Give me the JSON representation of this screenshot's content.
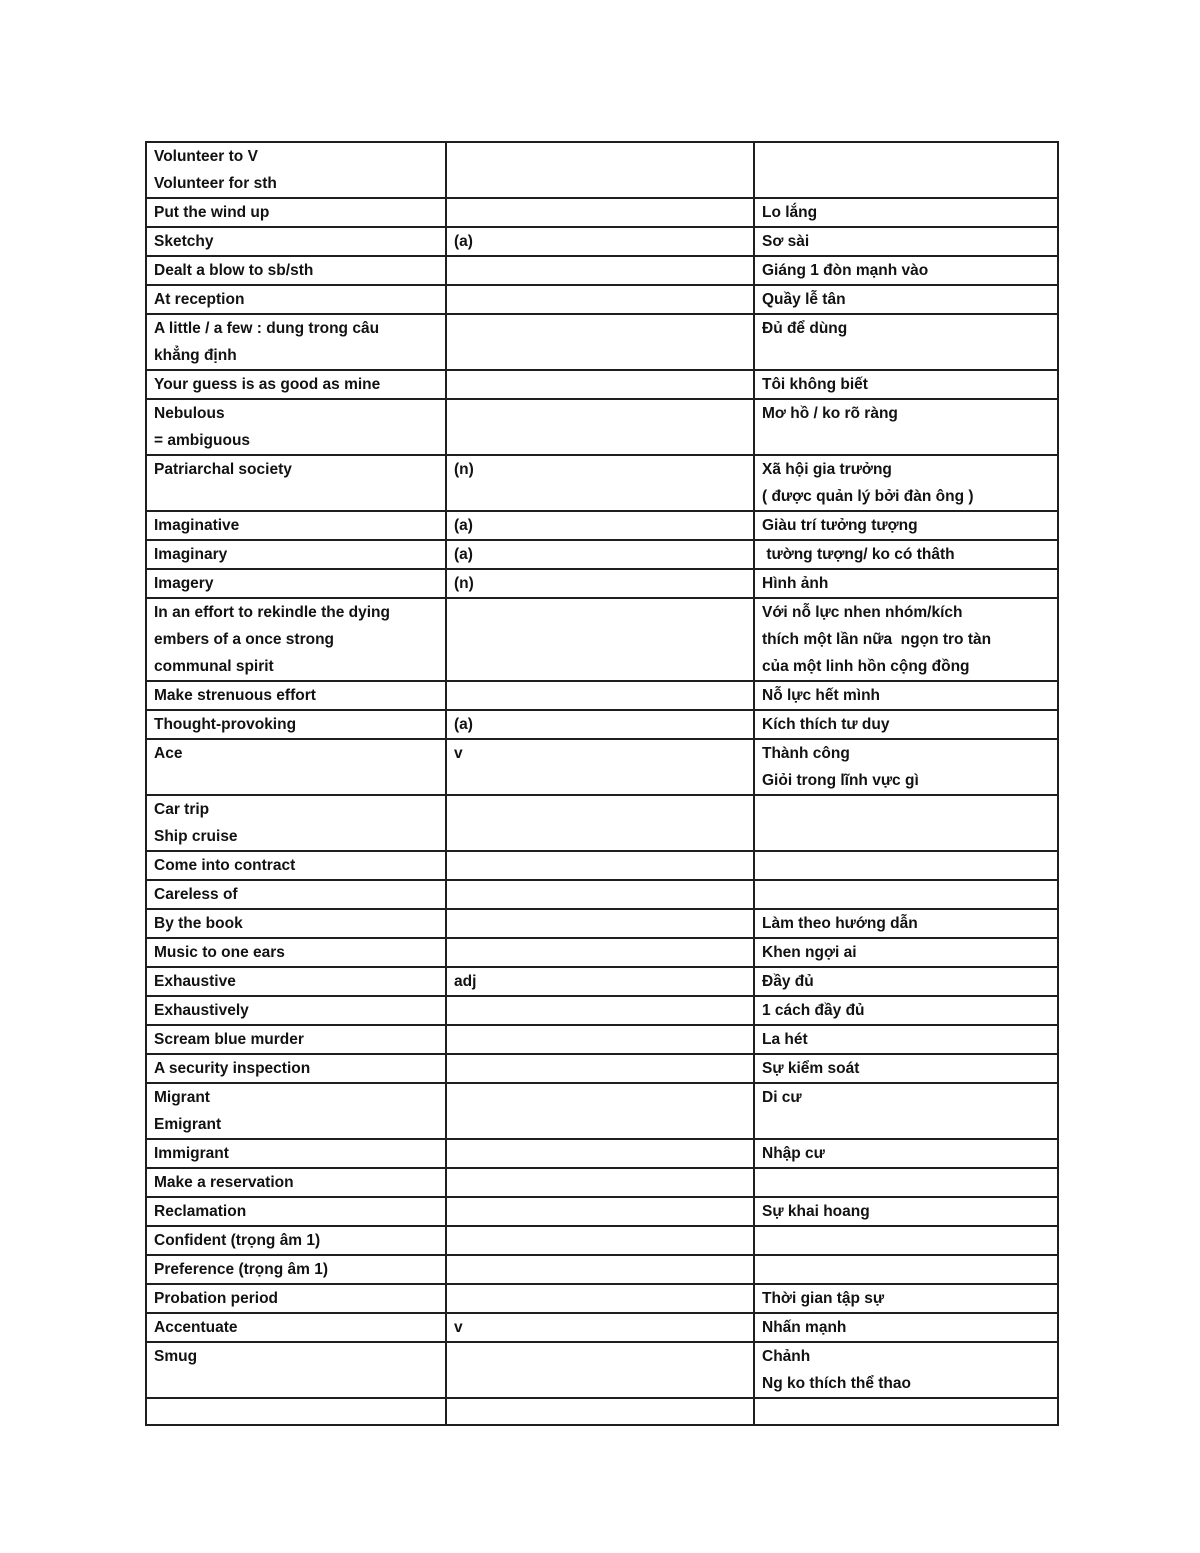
{
  "page": {
    "background_color": "#ffffff",
    "text_color": "#121212",
    "table_border_color": "#1f1f1f"
  },
  "table": {
    "columns": [
      "english_term",
      "part_of_speech",
      "vietnamese_meaning"
    ],
    "rows": [
      {
        "en": "Volunteer to V\nVolunteer for sth",
        "pos": "",
        "vi": ""
      },
      {
        "en": "Put the wind up",
        "pos": "",
        "vi": "Lo lắng"
      },
      {
        "en": "Sketchy",
        "pos": "(a)",
        "vi": "Sơ sài"
      },
      {
        "en": "Dealt a blow to sb/sth",
        "pos": "",
        "vi": "Giáng 1 đòn mạnh vào"
      },
      {
        "en": "At reception",
        "pos": "",
        "vi": "Quầy lễ tân"
      },
      {
        "en": "A little / a few : dung trong câu\nkhẳng định",
        "pos": "",
        "vi": "Đủ để dùng"
      },
      {
        "en": "Your guess is as good as mine",
        "pos": "",
        "vi": "Tôi không biết"
      },
      {
        "en": "Nebulous\n= ambiguous",
        "pos": "",
        "vi": "Mơ hồ / ko rõ ràng"
      },
      {
        "en": "Patriarchal society",
        "pos": "(n)",
        "vi": "Xã hội gia trưởng\n( được quản lý bởi đàn ông )"
      },
      {
        "en": "Imaginative",
        "pos": "(a)",
        "vi": "Giàu trí tưởng tượng"
      },
      {
        "en": "Imaginary",
        "pos": "(a)",
        "vi": " tường tượng/ ko có thâth"
      },
      {
        "en": "Imagery",
        "pos": "(n)",
        "vi": "Hình ảnh"
      },
      {
        "en": "In an effort to rekindle the dying\nembers of a once strong\ncommunal spirit",
        "pos": "",
        "vi": "Với nỗ lực nhen nhóm/kích\nthích một lần nữa  ngọn tro tàn\ncủa một linh hồn cộng đồng"
      },
      {
        "en": "Make strenuous effort",
        "pos": "",
        "vi": "Nỗ lực hết mình"
      },
      {
        "en": "Thought-provoking",
        "pos": "(a)",
        "vi": "Kích thích tư duy"
      },
      {
        "en": "Ace",
        "pos": "v",
        "vi": "Thành công\nGiỏi trong lĩnh vực gì"
      },
      {
        "en": "Car trip\nShip cruise",
        "pos": "",
        "vi": ""
      },
      {
        "en": "Come into contract",
        "pos": "",
        "vi": ""
      },
      {
        "en": "Careless of",
        "pos": "",
        "vi": ""
      },
      {
        "en": "By the book",
        "pos": "",
        "vi": "Làm theo hướng dẫn"
      },
      {
        "en": "Music to one ears",
        "pos": "",
        "vi": "Khen ngợi ai"
      },
      {
        "en": "Exhaustive",
        "pos": "adj",
        "vi": "Đầy đủ"
      },
      {
        "en": "Exhaustively",
        "pos": "",
        "vi": "1 cách đầy đủ"
      },
      {
        "en": "Scream blue murder",
        "pos": "",
        "vi": "La hét"
      },
      {
        "en": "A security inspection",
        "pos": "",
        "vi": "Sự kiểm soát"
      },
      {
        "en": "Migrant\nEmigrant",
        "pos": "",
        "vi": "Di cư"
      },
      {
        "en": "Immigrant",
        "pos": "",
        "vi": "Nhập cư"
      },
      {
        "en": "Make a reservation",
        "pos": "",
        "vi": ""
      },
      {
        "en": "Reclamation",
        "pos": "",
        "vi": "Sự khai hoang"
      },
      {
        "en": "Confident (trọng âm 1)",
        "pos": "",
        "vi": ""
      },
      {
        "en": "Preference (trọng âm 1)",
        "pos": "",
        "vi": ""
      },
      {
        "en": "Probation period",
        "pos": "",
        "vi": "Thời gian tập sự"
      },
      {
        "en": "Accentuate",
        "pos": "v",
        "vi": "Nhấn mạnh"
      },
      {
        "en": "Smug",
        "pos": "",
        "vi": "Chảnh\nNg ko thích thể thao"
      },
      {
        "en": "",
        "pos": "",
        "vi": ""
      }
    ]
  }
}
